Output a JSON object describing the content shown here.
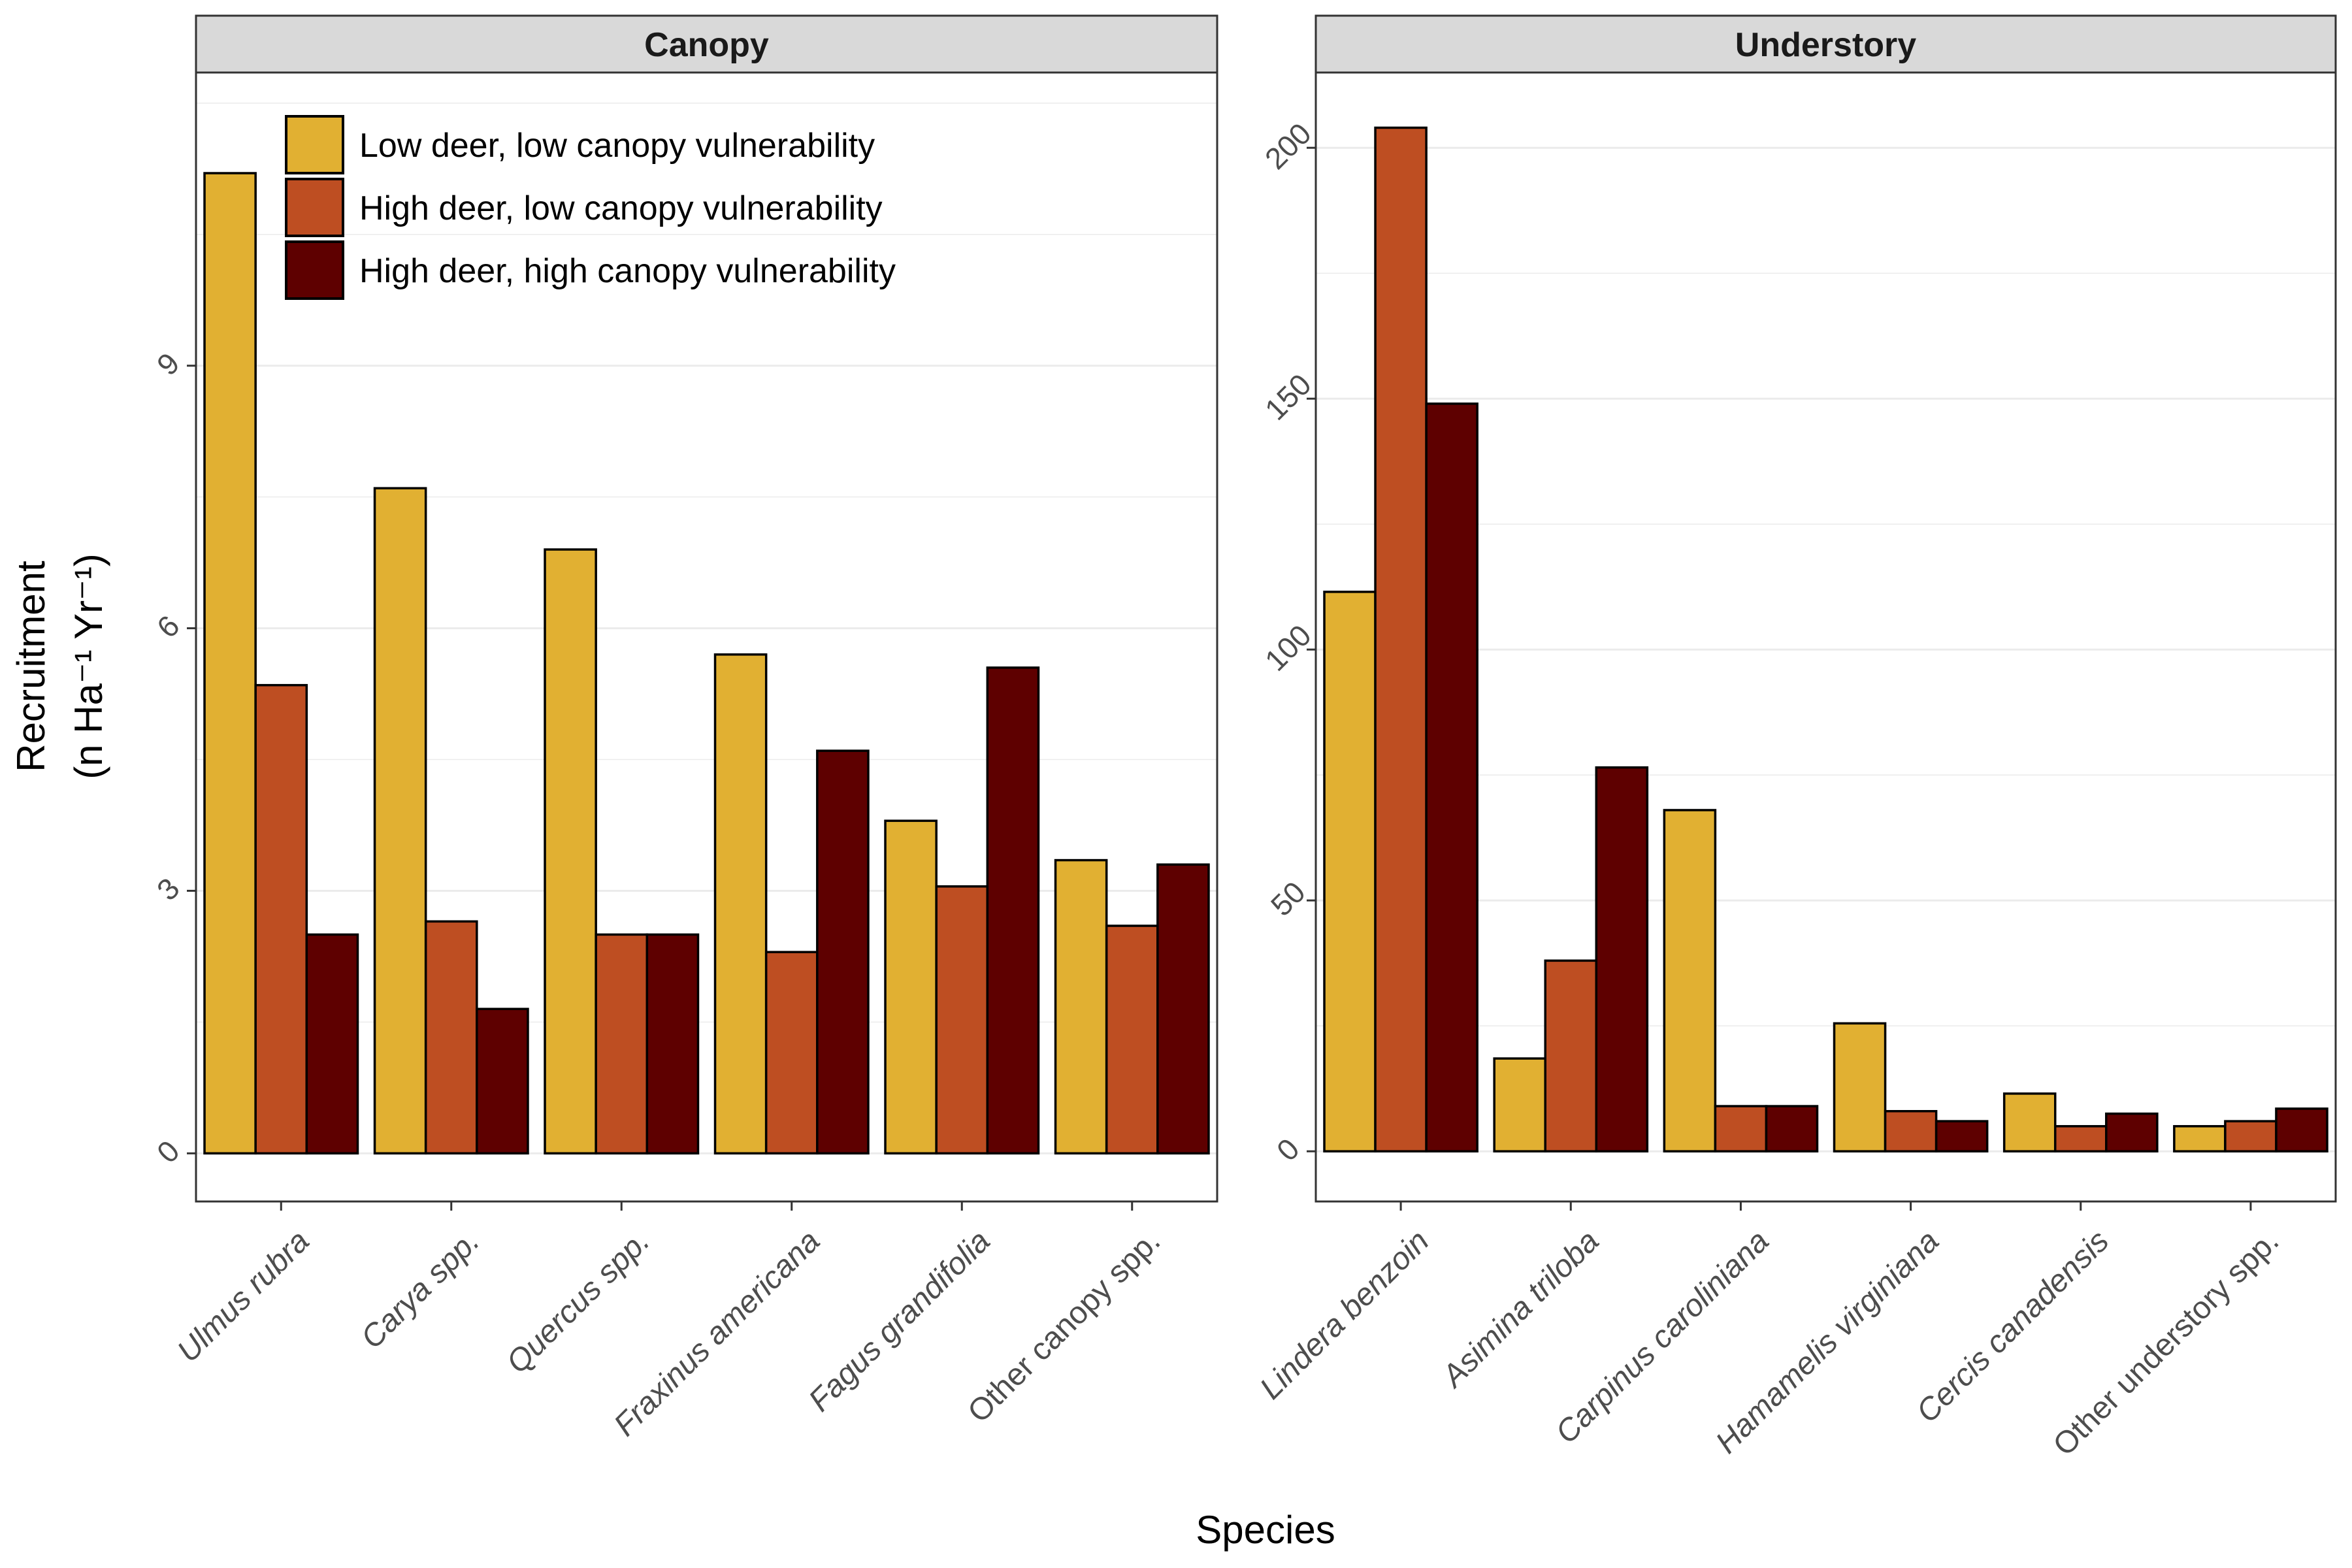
{
  "chart_data": [
    {
      "type": "bar",
      "title": "Canopy",
      "categories": [
        "Ulmus rubra",
        "Carya spp.",
        "Quercus spp.",
        "Fraxinus americana",
        "Fagus grandifolia",
        "Other canopy spp."
      ],
      "series": [
        {
          "name": "Low deer, low canopy vulnerability",
          "color": "#E1B032",
          "values": [
            11.2,
            7.6,
            6.9,
            5.7,
            3.8,
            3.35
          ]
        },
        {
          "name": "High deer, low canopy vulnerability",
          "color": "#BE4E22",
          "values": [
            5.35,
            2.65,
            2.5,
            2.3,
            3.05,
            2.6
          ]
        },
        {
          "name": "High deer, high canopy vulnerability",
          "color": "#5E0000",
          "values": [
            2.5,
            1.65,
            2.5,
            4.6,
            5.55,
            3.3
          ]
        }
      ],
      "ylim": [
        -0.55,
        12.35
      ],
      "yticks": [
        0,
        3,
        6,
        9
      ],
      "ytick_labels": [
        "0",
        "3",
        "6",
        "9"
      ],
      "legend": "top-left"
    },
    {
      "type": "bar",
      "title": "Understory",
      "categories": [
        "Lindera benzoin",
        "Asimina triloba",
        "Carpinus caroliniana",
        "Hamamelis virginiana",
        "Cercis canadensis",
        "Other understory spp."
      ],
      "series": [
        {
          "name": "Low deer, low canopy vulnerability",
          "color": "#E1B032",
          "values": [
            111.5,
            18.5,
            68,
            25.5,
            11.5,
            5
          ]
        },
        {
          "name": "High deer, low canopy vulnerability",
          "color": "#BE4E22",
          "values": [
            204,
            38,
            9,
            8,
            5,
            6
          ]
        },
        {
          "name": "High deer, high canopy vulnerability",
          "color": "#5E0000",
          "values": [
            149,
            76.5,
            9,
            6,
            7.5,
            8.5
          ]
        }
      ],
      "ylim": [
        -10,
        215
      ],
      "yticks": [
        0,
        50,
        100,
        150,
        200
      ],
      "ytick_labels": [
        "0",
        "50",
        "100",
        "150",
        "200"
      ]
    }
  ],
  "xlabel": "Species",
  "ylabel_line1": "Recruitment",
  "ylabel_line2": "(n Ha⁻¹ Yr⁻¹)"
}
